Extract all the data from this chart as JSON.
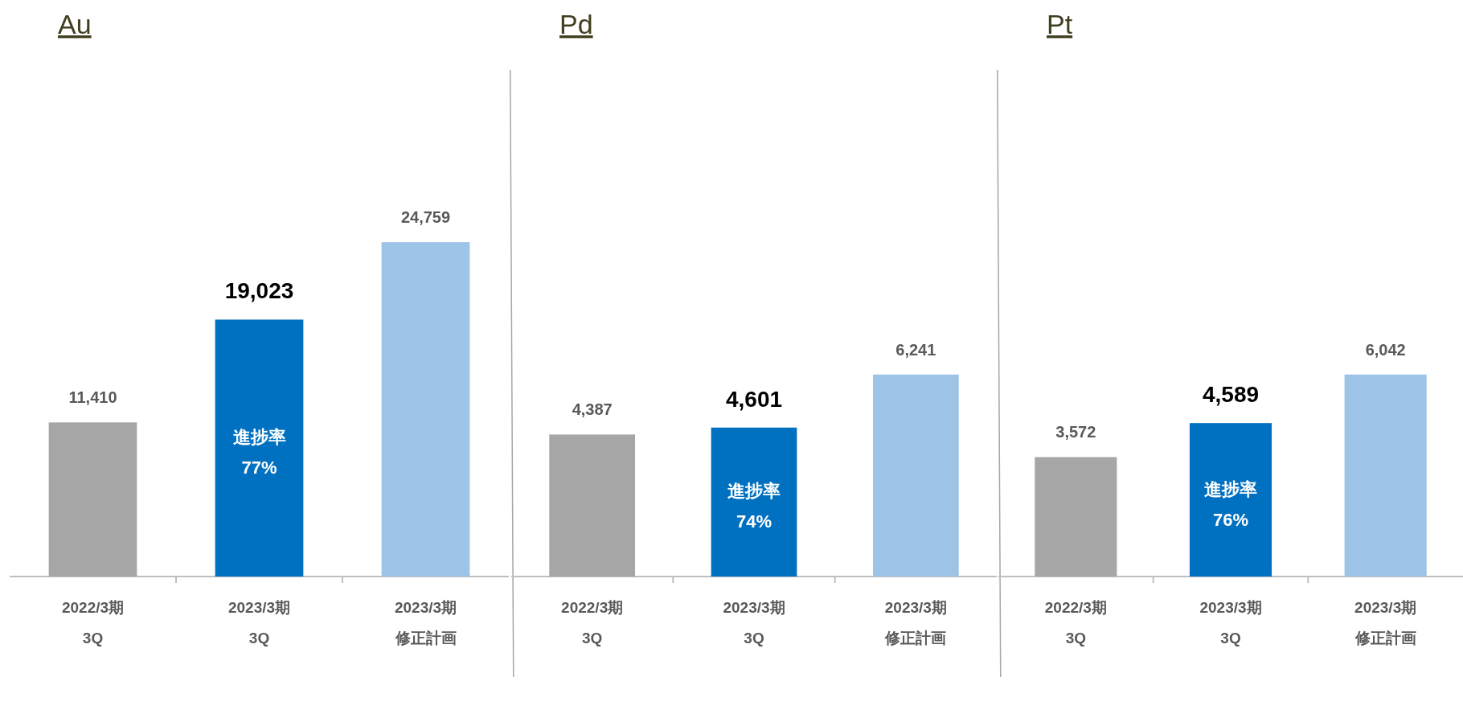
{
  "chart_data": [
    {
      "type": "bar",
      "title": "Au",
      "categories": [
        "2022/3期\n3Q",
        "2023/3期\n3Q",
        "2023/3期修正計画"
      ],
      "values": [
        11410,
        19023,
        24759
      ],
      "colors": [
        "#a6a6a6",
        "#0070c0",
        "#9dc3e6"
      ],
      "value_labels": [
        "11,410",
        "19,023",
        "24,759"
      ],
      "annotations": [
        "進捗率\n77%"
      ]
    },
    {
      "type": "bar",
      "title": "Pd",
      "categories": [
        "2022/3期\n3Q",
        "2023/3期\n3Q",
        "2023/3期修正計画"
      ],
      "values": [
        4387,
        4601,
        6241
      ],
      "colors": [
        "#a6a6a6",
        "#0070c0",
        "#9dc3e6"
      ],
      "value_labels": [
        "4,387",
        "4,601",
        "6,241"
      ],
      "annotations": [
        "進捗率\n74%"
      ]
    },
    {
      "type": "bar",
      "title": "Pt",
      "categories": [
        "2022/3期\n3Q",
        "2023/3期\n3Q",
        "2023/3期修正計画"
      ],
      "values": [
        3572,
        4589,
        6042
      ],
      "colors": [
        "#a6a6a6",
        "#0070c0",
        "#9dc3e6"
      ],
      "value_labels": [
        "3,572",
        "4,589",
        "6,042"
      ],
      "annotations": [
        "進捗率\n76%"
      ]
    }
  ]
}
